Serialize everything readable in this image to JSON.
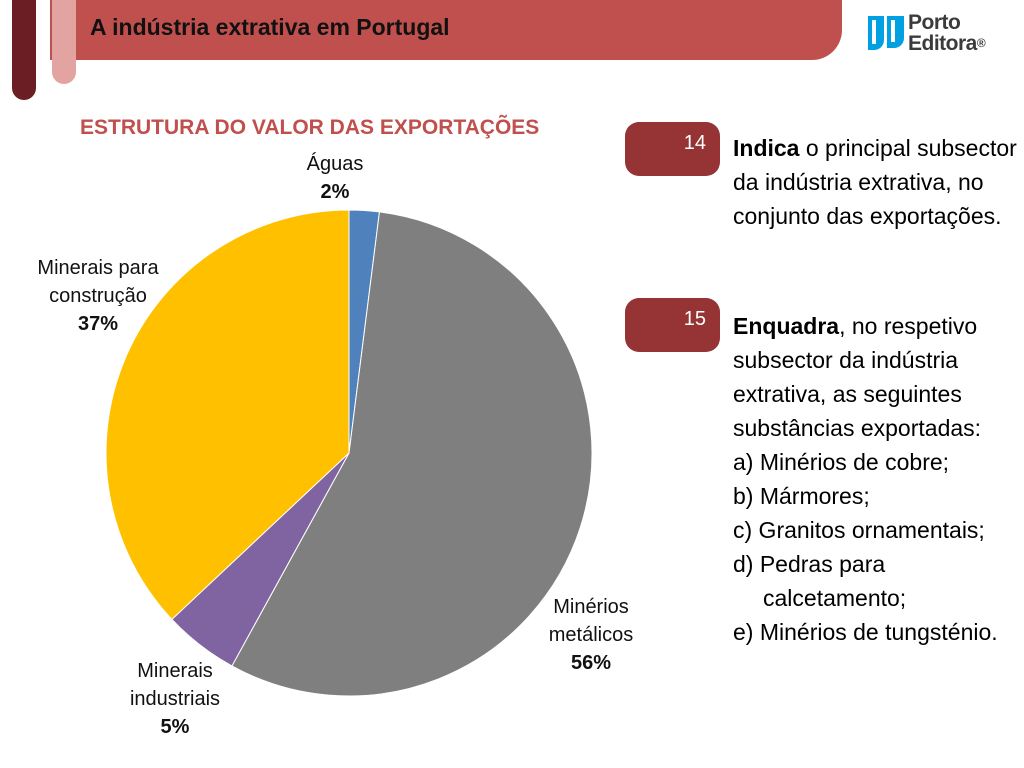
{
  "header": {
    "title": "A indústria extrativa em Portugal"
  },
  "logo": {
    "line1": "Porto",
    "line2": "Editora",
    "reg": "®"
  },
  "chart_data": {
    "type": "pie",
    "title": "ESTRUTURA DO VALOR DAS EXPORTAÇÕES",
    "slices": [
      {
        "label": "Águas",
        "value": 2,
        "pct_label": "2%",
        "color": "#4f81bd"
      },
      {
        "label": "Minérios metálicos",
        "value": 56,
        "pct_label": "56%",
        "color": "#7f7f7f"
      },
      {
        "label": "Minerais industriais",
        "value": 5,
        "pct_label": "5%",
        "color": "#8064a2"
      },
      {
        "label": "Minerais para construção",
        "value": 37,
        "pct_label": "37%",
        "color": "#ffc000"
      }
    ],
    "label_lines": {
      "aguas": [
        "Águas"
      ],
      "metalicos": [
        "Minérios",
        "metálicos"
      ],
      "industriais": [
        "Minerais",
        "industriais"
      ],
      "construcao": [
        "Minerais para",
        "construção"
      ]
    }
  },
  "questions": [
    {
      "number": "14",
      "bold": "Indica",
      "text": " o principal subsector da indústria extrativa, no conjunto das exportações."
    },
    {
      "number": "15",
      "bold": "Enquadra",
      "text": ", no respetivo subsector da indústria extrativa, as seguintes substâncias exportadas:",
      "items": [
        "a) Minérios de cobre;",
        "b) Mármores;",
        "c) Granitos ornamentais;",
        "d) Pedras para calcetamento;",
        "e) Minérios de tungsténio."
      ]
    }
  ],
  "colors": {
    "accent": "#c0504d",
    "badge": "#963334",
    "dark_bar": "#6b1f24",
    "light_bar": "#e3a3a0"
  }
}
